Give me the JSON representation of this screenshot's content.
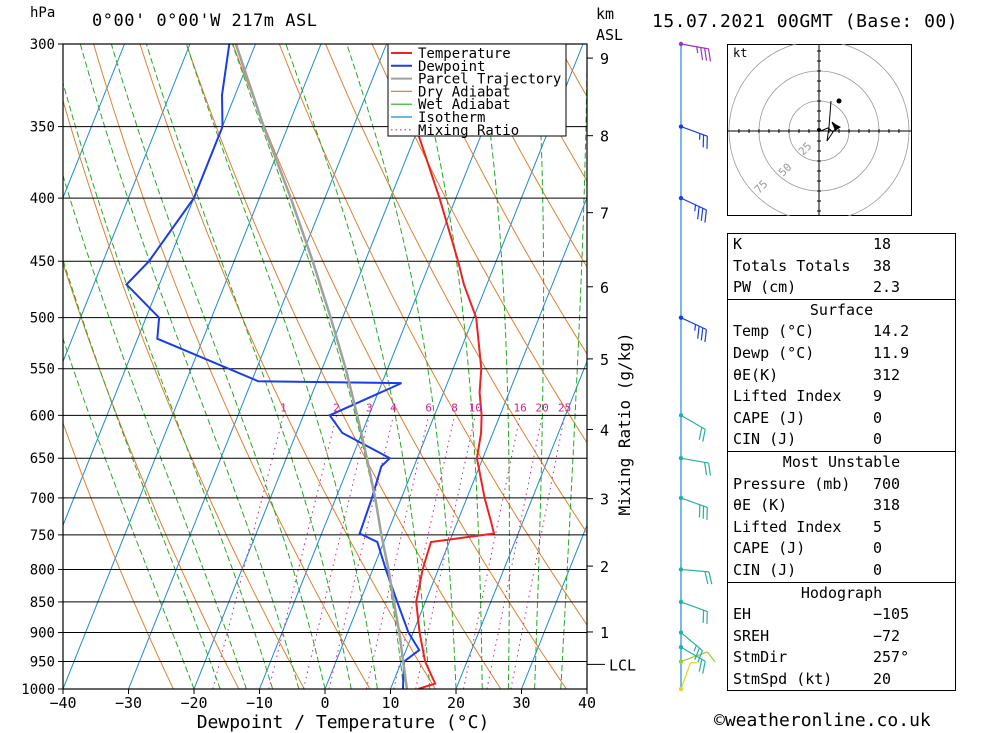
{
  "header": {
    "pressure_unit": "hPa",
    "location": "0°00' 0°00'W 217m ASL",
    "height_unit_top": "km",
    "height_unit_bottom": "ASL",
    "date": "15.07.2021 00GMT (Base: 00)"
  },
  "chart_data": {
    "type": "line",
    "subtype": "skew-t log-p",
    "xlabel": "Dewpoint / Temperature (°C)",
    "ylabel": "hPa",
    "secondary_ylabel": "Mixing Ratio (g/kg)",
    "xlim": [
      -40,
      40
    ],
    "ylim": [
      1000,
      300
    ],
    "x_ticks": [
      "−40",
      "−30",
      "−20",
      "−10",
      "0",
      "10",
      "20",
      "30",
      "40"
    ],
    "pressure_levels": [
      300,
      350,
      400,
      450,
      500,
      550,
      600,
      650,
      700,
      750,
      800,
      850,
      900,
      950,
      1000
    ],
    "km_levels": [
      {
        "km": "1",
        "p": 899
      },
      {
        "km": "2",
        "p": 795
      },
      {
        "km": "3",
        "p": 701
      },
      {
        "km": "4",
        "p": 616
      },
      {
        "km": "5",
        "p": 540
      },
      {
        "km": "6",
        "p": 472
      },
      {
        "km": "7",
        "p": 411
      },
      {
        "km": "8",
        "p": 356
      },
      {
        "km": "9",
        "p": 308
      }
    ],
    "lcl": {
      "label": "LCL",
      "p": 955
    },
    "mixing_ratio_labels": [
      "1",
      "2",
      "3",
      "4",
      "6",
      "8",
      "10",
      "16",
      "20",
      "25"
    ],
    "legend": [
      "Temperature",
      "Dewpoint",
      "Parcel Trajectory",
      "Dry Adiabat",
      "Wet Adiabat",
      "Isotherm",
      "Mixing Ratio"
    ],
    "colors": {
      "temperature": "#ee2222",
      "dewpoint": "#1a3de8",
      "parcel": "#a0a0a0",
      "dry_adiabat": "#e08030",
      "wet_adiabat": "#22aa22",
      "isotherm": "#1e8ad6",
      "mixing_ratio": "#cc2288"
    },
    "series": [
      {
        "name": "Temperature",
        "points": [
          [
            1000,
            14.2
          ],
          [
            990,
            16.5
          ],
          [
            950,
            13.6
          ],
          [
            900,
            11.0
          ],
          [
            850,
            8.6
          ],
          [
            800,
            7.6
          ],
          [
            760,
            7.2
          ],
          [
            748,
            16.3
          ],
          [
            730,
            15.0
          ],
          [
            700,
            12.7
          ],
          [
            650,
            9.1
          ],
          [
            620,
            8.2
          ],
          [
            600,
            7.2
          ],
          [
            575,
            5.5
          ],
          [
            550,
            4.3
          ],
          [
            500,
            0.4
          ],
          [
            470,
            -3.5
          ],
          [
            450,
            -5.8
          ],
          [
            400,
            -12.5
          ],
          [
            350,
            -20.5
          ],
          [
            330,
            -24.5
          ],
          [
            300,
            -29.0
          ]
        ]
      },
      {
        "name": "Dewpoint",
        "points": [
          [
            1000,
            11.9
          ],
          [
            950,
            10.4
          ],
          [
            930,
            12.0
          ],
          [
            900,
            9.3
          ],
          [
            850,
            5.7
          ],
          [
            800,
            2.0
          ],
          [
            760,
            -1.0
          ],
          [
            748,
            -4.2
          ],
          [
            700,
            -4.5
          ],
          [
            660,
            -5.0
          ],
          [
            650,
            -4.2
          ],
          [
            620,
            -13.0
          ],
          [
            600,
            -16.0
          ],
          [
            565,
            -7.0
          ],
          [
            563,
            -29.0
          ],
          [
            520,
            -47.0
          ],
          [
            500,
            -48.0
          ],
          [
            470,
            -55.0
          ],
          [
            450,
            -53.0
          ],
          [
            400,
            -50.0
          ],
          [
            350,
            -50.0
          ],
          [
            330,
            -52.0
          ],
          [
            300,
            -54.0
          ]
        ]
      },
      {
        "name": "Parcel Trajectory",
        "points": [
          [
            1000,
            12.5
          ],
          [
            955,
            10.5
          ],
          [
            900,
            7.9
          ],
          [
            850,
            5.2
          ],
          [
            800,
            2.4
          ],
          [
            750,
            -0.8
          ],
          [
            700,
            -4.0
          ],
          [
            650,
            -7.7
          ],
          [
            600,
            -11.8
          ],
          [
            550,
            -16.4
          ],
          [
            500,
            -21.8
          ],
          [
            450,
            -28.0
          ],
          [
            400,
            -35.2
          ],
          [
            350,
            -43.7
          ],
          [
            300,
            -53.0
          ]
        ]
      }
    ],
    "wind_barbs": [
      {
        "p": 1000,
        "dir": 200,
        "spd": 5,
        "color": "#d8d820"
      },
      {
        "p": 950,
        "dir": 250,
        "spd": 10,
        "color": "#99cc33"
      },
      {
        "p": 925,
        "dir": 300,
        "spd": 20,
        "color": "#22b2a0"
      },
      {
        "p": 900,
        "dir": 310,
        "spd": 25,
        "color": "#22b2a0"
      },
      {
        "p": 850,
        "dir": 290,
        "spd": 20,
        "color": "#22b2a0"
      },
      {
        "p": 800,
        "dir": 275,
        "spd": 20,
        "color": "#22b2a0"
      },
      {
        "p": 700,
        "dir": 290,
        "spd": 30,
        "color": "#22b2a0"
      },
      {
        "p": 650,
        "dir": 280,
        "spd": 20,
        "color": "#22b2a0"
      },
      {
        "p": 600,
        "dir": 300,
        "spd": 20,
        "color": "#22b2a0"
      },
      {
        "p": 500,
        "dir": 295,
        "spd": 35,
        "color": "#1a3de8"
      },
      {
        "p": 400,
        "dir": 295,
        "spd": 35,
        "color": "#1a3de8"
      },
      {
        "p": 350,
        "dir": 290,
        "spd": 25,
        "color": "#1a3de8"
      },
      {
        "p": 300,
        "dir": 280,
        "spd": 35,
        "color": "#9933cc"
      }
    ]
  },
  "hodograph": {
    "unit": "kt",
    "rings": [
      "25",
      "50",
      "75"
    ]
  },
  "indices": {
    "general": [
      {
        "label": "K",
        "value": "18"
      },
      {
        "label": "Totals Totals",
        "value": "38"
      },
      {
        "label": "PW (cm)",
        "value": "2.3"
      }
    ],
    "surface_title": "Surface",
    "surface": [
      {
        "label": "Temp (°C)",
        "value": "14.2"
      },
      {
        "label": "Dewp (°C)",
        "value": "11.9"
      },
      {
        "label": "θE(K)",
        "value": "312"
      },
      {
        "label": "Lifted Index",
        "value": "9"
      },
      {
        "label": "CAPE (J)",
        "value": "0"
      },
      {
        "label": "CIN (J)",
        "value": "0"
      }
    ],
    "mu_title": "Most Unstable",
    "mu": [
      {
        "label": "Pressure (mb)",
        "value": "700"
      },
      {
        "label": "θE (K)",
        "value": "318"
      },
      {
        "label": "Lifted Index",
        "value": "5"
      },
      {
        "label": "CAPE (J)",
        "value": "0"
      },
      {
        "label": "CIN (J)",
        "value": "0"
      }
    ],
    "hodo_title": "Hodograph",
    "hodo": [
      {
        "label": "EH",
        "value": "−105"
      },
      {
        "label": "SREH",
        "value": "−72"
      },
      {
        "label": "StmDir",
        "value": "257°"
      },
      {
        "label": "StmSpd (kt)",
        "value": "20"
      }
    ]
  },
  "footer": {
    "copyright": "©weatheronline.co.uk"
  }
}
